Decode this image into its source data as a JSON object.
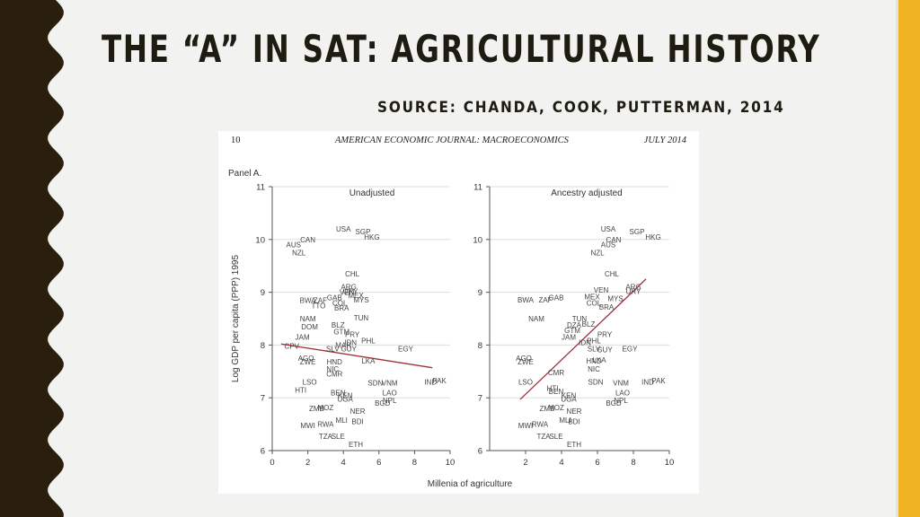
{
  "slide": {
    "title": "THE “A” IN SAT: AGRICULTURAL HISTORY",
    "subtitle": "SOURCE: CHANDA, COOK, PUTTERMAN, 2014",
    "colors": {
      "background": "#f2f2f0",
      "border": "#2a1f0d",
      "accent": "#f0b323",
      "title": "#1e1b10",
      "fit_line": "#a0303a",
      "grid": "#dddddd"
    }
  },
  "page_header": {
    "page_number": "10",
    "journal": "AMERICAN ECONOMIC JOURNAL: MACROECONOMICS",
    "date": "JULY 2014"
  },
  "panel_label": "Panel A.",
  "chart_data": [
    {
      "type": "scatter",
      "title": "Unadjusted",
      "xlabel": "Millenia of agriculture",
      "ylabel": "Log GDP per capita (PPP) 1995",
      "xlim": [
        0,
        10
      ],
      "ylim": [
        6,
        11
      ],
      "xticks": [
        "0",
        "2",
        "4",
        "6",
        "8",
        "10"
      ],
      "yticks": [
        "6",
        "7",
        "8",
        "9",
        "10",
        "11"
      ],
      "grid": "horizontal",
      "fit_line": {
        "x": [
          0.5,
          9
        ],
        "y": [
          8.02,
          7.57
        ]
      },
      "points": [
        {
          "label": "USA",
          "x": 4.0,
          "y": 10.2
        },
        {
          "label": "SGP",
          "x": 5.1,
          "y": 10.15
        },
        {
          "label": "HKG",
          "x": 5.6,
          "y": 10.05
        },
        {
          "label": "CAN",
          "x": 2.0,
          "y": 10.0
        },
        {
          "label": "AUS",
          "x": 1.2,
          "y": 9.9
        },
        {
          "label": "NZL",
          "x": 1.5,
          "y": 9.75
        },
        {
          "label": "CHL",
          "x": 4.5,
          "y": 9.35
        },
        {
          "label": "ARG",
          "x": 4.3,
          "y": 9.1
        },
        {
          "label": "URY",
          "x": 4.4,
          "y": 9.02
        },
        {
          "label": "VEN",
          "x": 4.2,
          "y": 9.0
        },
        {
          "label": "GAB",
          "x": 3.5,
          "y": 8.9
        },
        {
          "label": "MEX",
          "x": 4.7,
          "y": 8.94
        },
        {
          "label": "MYS",
          "x": 5.0,
          "y": 8.86
        },
        {
          "label": "BWA",
          "x": 2.0,
          "y": 8.85
        },
        {
          "label": "ZAF",
          "x": 2.7,
          "y": 8.85
        },
        {
          "label": "BRA",
          "x": 3.9,
          "y": 8.7
        },
        {
          "label": "COL",
          "x": 3.8,
          "y": 8.8
        },
        {
          "label": "TTO",
          "x": 2.6,
          "y": 8.75
        },
        {
          "label": "NAM",
          "x": 2.0,
          "y": 8.5
        },
        {
          "label": "TUN",
          "x": 5.0,
          "y": 8.52
        },
        {
          "label": "DOM",
          "x": 2.1,
          "y": 8.35
        },
        {
          "label": "BLZ",
          "x": 3.7,
          "y": 8.38
        },
        {
          "label": "GTM",
          "x": 3.9,
          "y": 8.25
        },
        {
          "label": "PRY",
          "x": 4.5,
          "y": 8.2
        },
        {
          "label": "JAM",
          "x": 1.7,
          "y": 8.15
        },
        {
          "label": "PHL",
          "x": 5.4,
          "y": 8.08
        },
        {
          "label": "IDN",
          "x": 4.4,
          "y": 8.05
        },
        {
          "label": "MAR",
          "x": 4.0,
          "y": 8.0
        },
        {
          "label": "CPV",
          "x": 1.1,
          "y": 7.98
        },
        {
          "label": "SLV",
          "x": 3.4,
          "y": 7.93
        },
        {
          "label": "GUY",
          "x": 4.3,
          "y": 7.93
        },
        {
          "label": "EGY",
          "x": 7.5,
          "y": 7.93
        },
        {
          "label": "AGO",
          "x": 1.9,
          "y": 7.75
        },
        {
          "label": "ZWE",
          "x": 2.0,
          "y": 7.68
        },
        {
          "label": "HND",
          "x": 3.5,
          "y": 7.68
        },
        {
          "label": "LKA",
          "x": 5.4,
          "y": 7.7
        },
        {
          "label": "NIC",
          "x": 3.4,
          "y": 7.55
        },
        {
          "label": "CMR",
          "x": 3.5,
          "y": 7.45
        },
        {
          "label": "LSO",
          "x": 2.1,
          "y": 7.3
        },
        {
          "label": "SDN",
          "x": 5.8,
          "y": 7.28
        },
        {
          "label": "VNM",
          "x": 6.6,
          "y": 7.28
        },
        {
          "label": "IND",
          "x": 8.9,
          "y": 7.3
        },
        {
          "label": "PAK",
          "x": 9.4,
          "y": 7.33
        },
        {
          "label": "HTI",
          "x": 1.6,
          "y": 7.15
        },
        {
          "label": "BEN",
          "x": 3.7,
          "y": 7.1
        },
        {
          "label": "LAO",
          "x": 6.6,
          "y": 7.1
        },
        {
          "label": "KEN",
          "x": 4.1,
          "y": 7.05
        },
        {
          "label": "UGA",
          "x": 4.1,
          "y": 6.98
        },
        {
          "label": "NPL",
          "x": 6.6,
          "y": 6.95
        },
        {
          "label": "BGD",
          "x": 6.2,
          "y": 6.9
        },
        {
          "label": "ZMB",
          "x": 2.5,
          "y": 6.8
        },
        {
          "label": "MOZ",
          "x": 3.0,
          "y": 6.82
        },
        {
          "label": "NER",
          "x": 4.8,
          "y": 6.75
        },
        {
          "label": "MLI",
          "x": 3.9,
          "y": 6.58
        },
        {
          "label": "BDI",
          "x": 4.8,
          "y": 6.55
        },
        {
          "label": "MWI",
          "x": 2.0,
          "y": 6.48
        },
        {
          "label": "RWA",
          "x": 3.0,
          "y": 6.5
        },
        {
          "label": "TZA",
          "x": 3.0,
          "y": 6.27
        },
        {
          "label": "SLE",
          "x": 3.7,
          "y": 6.27
        },
        {
          "label": "ETH",
          "x": 4.7,
          "y": 6.12
        }
      ]
    },
    {
      "type": "scatter",
      "title": "Ancestry adjusted",
      "xlabel": "Millenia of agriculture",
      "ylabel": "",
      "xlim": [
        0,
        10
      ],
      "ylim": [
        6,
        11
      ],
      "xticks": [
        "2",
        "4",
        "6",
        "8",
        "10"
      ],
      "yticks": [
        "6",
        "7",
        "8",
        "9",
        "10",
        "11"
      ],
      "grid": "horizontal",
      "fit_line": {
        "x": [
          1.7,
          8.7
        ],
        "y": [
          6.97,
          9.25
        ]
      },
      "points": [
        {
          "label": "USA",
          "x": 6.6,
          "y": 10.2
        },
        {
          "label": "SGP",
          "x": 8.2,
          "y": 10.15
        },
        {
          "label": "HKG",
          "x": 9.1,
          "y": 10.05
        },
        {
          "label": "CAN",
          "x": 6.9,
          "y": 10.0
        },
        {
          "label": "AUS",
          "x": 6.6,
          "y": 9.9
        },
        {
          "label": "NZL",
          "x": 6.0,
          "y": 9.75
        },
        {
          "label": "CHL",
          "x": 6.8,
          "y": 9.35
        },
        {
          "label": "ARG",
          "x": 8.0,
          "y": 9.1
        },
        {
          "label": "URY",
          "x": 8.0,
          "y": 9.02
        },
        {
          "label": "VEN",
          "x": 6.2,
          "y": 9.04
        },
        {
          "label": "GAB",
          "x": 3.7,
          "y": 8.9
        },
        {
          "label": "MEX",
          "x": 5.7,
          "y": 8.92
        },
        {
          "label": "MYS",
          "x": 7.0,
          "y": 8.88
        },
        {
          "label": "BWA",
          "x": 2.0,
          "y": 8.86
        },
        {
          "label": "ZAF",
          "x": 3.1,
          "y": 8.86
        },
        {
          "label": "COL",
          "x": 5.8,
          "y": 8.8
        },
        {
          "label": "BRA",
          "x": 6.5,
          "y": 8.72
        },
        {
          "label": "NAM",
          "x": 2.6,
          "y": 8.5
        },
        {
          "label": "TUN",
          "x": 5.0,
          "y": 8.5
        },
        {
          "label": "DZA",
          "x": 4.7,
          "y": 8.38
        },
        {
          "label": "BLZ",
          "x": 5.5,
          "y": 8.4
        },
        {
          "label": "GTM",
          "x": 4.6,
          "y": 8.28
        },
        {
          "label": "PRY",
          "x": 6.4,
          "y": 8.2
        },
        {
          "label": "JAM",
          "x": 4.4,
          "y": 8.15
        },
        {
          "label": "PHL",
          "x": 5.8,
          "y": 8.08
        },
        {
          "label": "IDN",
          "x": 5.3,
          "y": 8.05
        },
        {
          "label": "SLV",
          "x": 5.8,
          "y": 7.93
        },
        {
          "label": "GUY",
          "x": 6.4,
          "y": 7.91
        },
        {
          "label": "EGY",
          "x": 7.8,
          "y": 7.93
        },
        {
          "label": "AGO",
          "x": 1.9,
          "y": 7.75
        },
        {
          "label": "ZWE",
          "x": 2.0,
          "y": 7.68
        },
        {
          "label": "HND",
          "x": 5.8,
          "y": 7.7
        },
        {
          "label": "LKA",
          "x": 6.1,
          "y": 7.72
        },
        {
          "label": "NIC",
          "x": 5.8,
          "y": 7.55
        },
        {
          "label": "CMR",
          "x": 3.7,
          "y": 7.48
        },
        {
          "label": "LSO",
          "x": 2.0,
          "y": 7.3
        },
        {
          "label": "SDN",
          "x": 5.9,
          "y": 7.3
        },
        {
          "label": "VNM",
          "x": 7.3,
          "y": 7.28
        },
        {
          "label": "IND",
          "x": 8.8,
          "y": 7.3
        },
        {
          "label": "PAK",
          "x": 9.4,
          "y": 7.33
        },
        {
          "label": "HTI",
          "x": 3.5,
          "y": 7.18
        },
        {
          "label": "BEN",
          "x": 3.7,
          "y": 7.12
        },
        {
          "label": "LAO",
          "x": 7.4,
          "y": 7.1
        },
        {
          "label": "KEN",
          "x": 4.4,
          "y": 7.05
        },
        {
          "label": "UGA",
          "x": 4.4,
          "y": 6.98
        },
        {
          "label": "NPL",
          "x": 7.3,
          "y": 6.95
        },
        {
          "label": "BGD",
          "x": 6.9,
          "y": 6.9
        },
        {
          "label": "ZMB",
          "x": 3.2,
          "y": 6.8
        },
        {
          "label": "MOZ",
          "x": 3.7,
          "y": 6.82
        },
        {
          "label": "NER",
          "x": 4.7,
          "y": 6.75
        },
        {
          "label": "MLI",
          "x": 4.2,
          "y": 6.58
        },
        {
          "label": "BDI",
          "x": 4.7,
          "y": 6.55
        },
        {
          "label": "MWI",
          "x": 2.0,
          "y": 6.48
        },
        {
          "label": "RWA",
          "x": 2.8,
          "y": 6.5
        },
        {
          "label": "TZA",
          "x": 3.0,
          "y": 6.27
        },
        {
          "label": "SLE",
          "x": 3.7,
          "y": 6.27
        },
        {
          "label": "ETH",
          "x": 4.7,
          "y": 6.12
        }
      ]
    }
  ]
}
